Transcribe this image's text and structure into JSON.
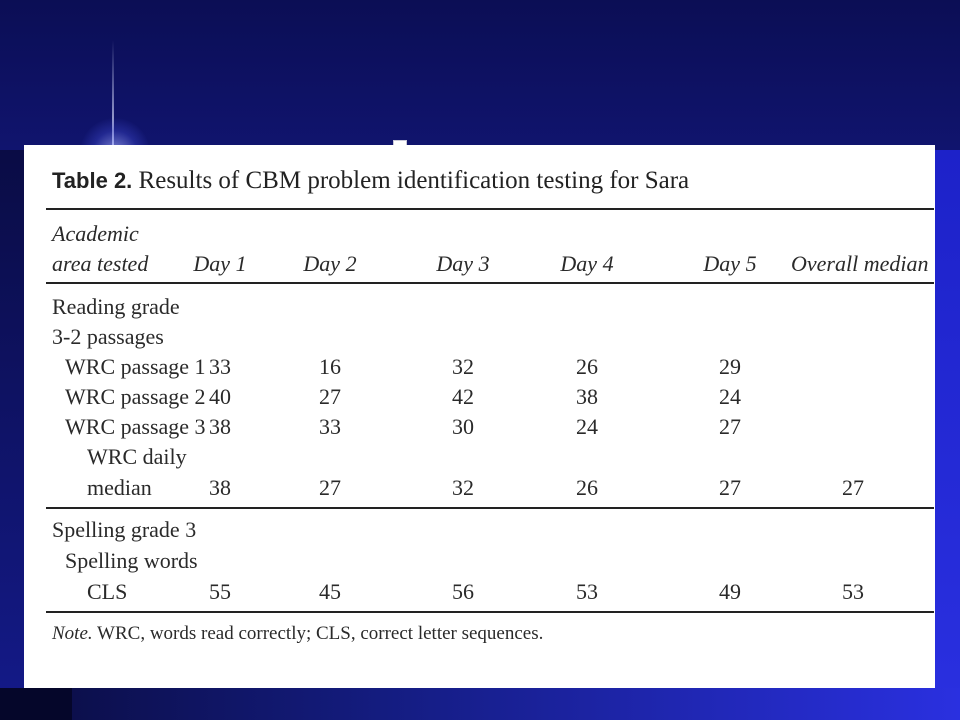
{
  "table": {
    "label": "Table 2.",
    "title": "Results of CBM problem identification testing for Sara",
    "header": {
      "col0_line1": "Academic",
      "col0_line2": "area tested",
      "days": [
        "Day 1",
        "Day 2",
        "Day 3",
        "Day 4",
        "Day 5"
      ],
      "overall": "Overall median"
    },
    "reading": {
      "heading_line1": "Reading grade",
      "heading_line2": "3-2 passages",
      "rows": [
        {
          "label": "WRC passage 1",
          "values": [
            "33",
            "16",
            "32",
            "26",
            "29"
          ],
          "overall": ""
        },
        {
          "label": "WRC passage 2",
          "values": [
            "40",
            "27",
            "42",
            "38",
            "24"
          ],
          "overall": ""
        },
        {
          "label": "WRC passage 3",
          "values": [
            "38",
            "33",
            "30",
            "24",
            "27"
          ],
          "overall": ""
        }
      ],
      "median_label_line1": "WRC daily",
      "median_label_line2": "median",
      "median_values": [
        "38",
        "27",
        "32",
        "26",
        "27"
      ],
      "median_overall": "27"
    },
    "spelling": {
      "heading_line1": "Spelling grade 3",
      "heading_line2": "Spelling words",
      "row_label": "CLS",
      "values": [
        "55",
        "45",
        "56",
        "53",
        "49"
      ],
      "overall": "53"
    },
    "note_label": "Note.",
    "note_text": " WRC, words read correctly; CLS, correct letter sequences."
  }
}
